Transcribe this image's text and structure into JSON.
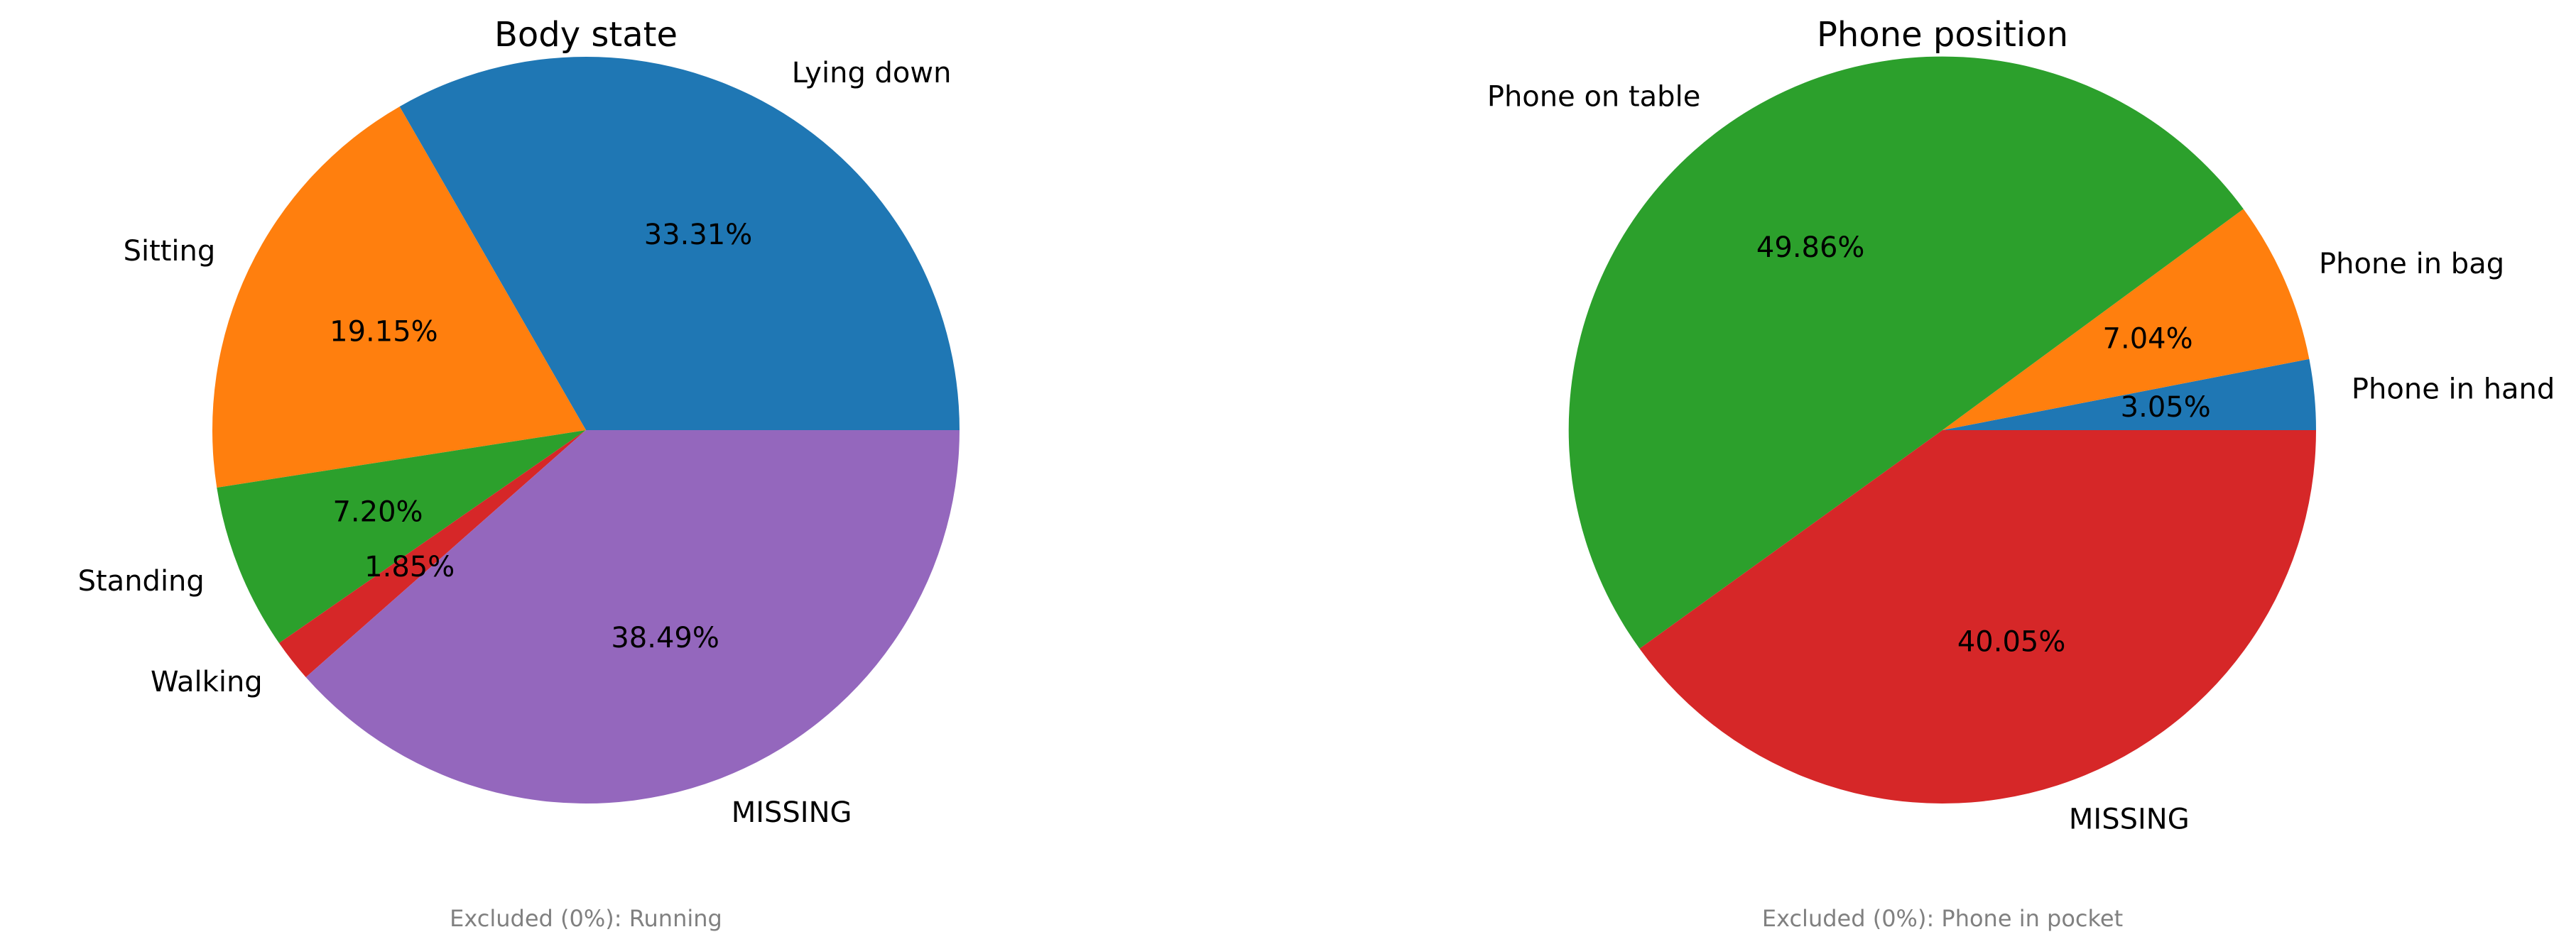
{
  "chart_data": [
    {
      "type": "pie",
      "title": "Body state",
      "start_angle_deg": 0,
      "direction": "counterclockwise",
      "slices": [
        {
          "label": "Lying down",
          "value": 33.31,
          "pct_label": "33.31%",
          "color": "#1f77b4"
        },
        {
          "label": "Sitting",
          "value": 19.15,
          "pct_label": "19.15%",
          "color": "#ff7f0e"
        },
        {
          "label": "Standing",
          "value": 7.2,
          "pct_label": "7.20%",
          "color": "#2ca02c"
        },
        {
          "label": "Walking",
          "value": 1.85,
          "pct_label": "1.85%",
          "color": "#d62728"
        },
        {
          "label": "MISSING",
          "value": 38.49,
          "pct_label": "38.49%",
          "color": "#9467bd"
        }
      ],
      "note": "Excluded (0%): Running"
    },
    {
      "type": "pie",
      "title": "Phone position",
      "start_angle_deg": 0,
      "direction": "counterclockwise",
      "slices": [
        {
          "label": "Phone in hand",
          "value": 3.05,
          "pct_label": "3.05%",
          "color": "#1f77b4"
        },
        {
          "label": "Phone in bag",
          "value": 7.04,
          "pct_label": "7.04%",
          "color": "#ff7f0e"
        },
        {
          "label": "Phone on table",
          "value": 49.86,
          "pct_label": "49.86%",
          "color": "#2ca02c"
        },
        {
          "label": "MISSING",
          "value": 40.05,
          "pct_label": "40.05%",
          "color": "#d62728"
        }
      ],
      "note": "Excluded (0%): Phone in pocket"
    }
  ]
}
